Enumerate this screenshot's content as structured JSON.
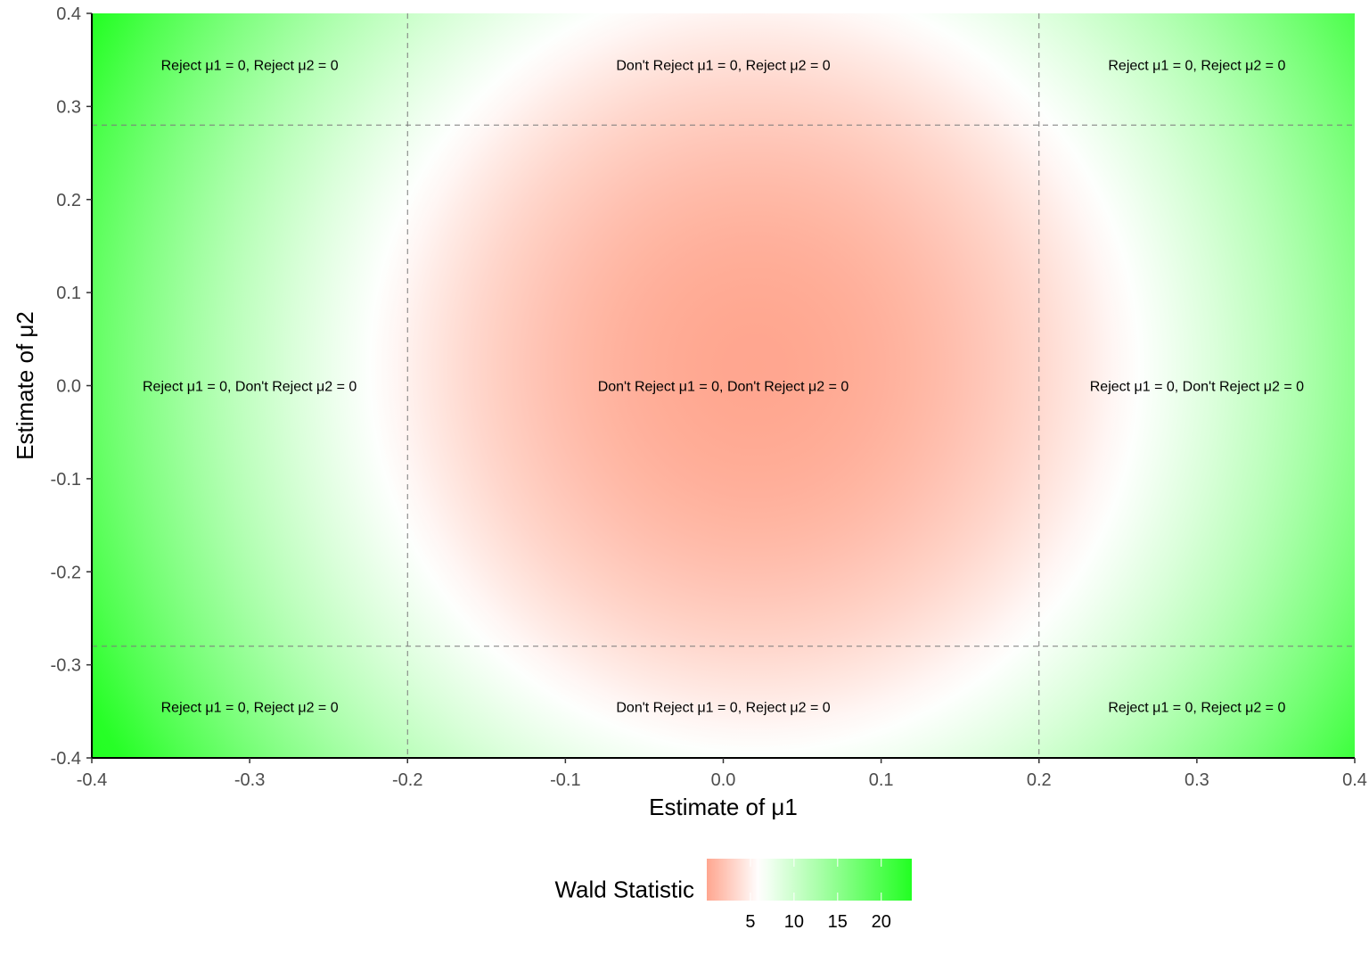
{
  "chart_data": {
    "type": "heatmap",
    "title": "",
    "xlabel": "Estimate of μ1",
    "ylabel": "Estimate of μ2",
    "xlim": [
      -0.4,
      0.4
    ],
    "ylim": [
      -0.4,
      0.4
    ],
    "x_ticks": [
      -0.4,
      -0.3,
      -0.2,
      -0.1,
      0.0,
      0.1,
      0.2,
      0.3,
      0.4
    ],
    "x_tick_labels": [
      "-0.4",
      "-0.3",
      "-0.2",
      "-0.1",
      "0.0",
      "0.1",
      "0.2",
      "0.3",
      "0.4"
    ],
    "y_ticks": [
      -0.4,
      -0.3,
      -0.2,
      -0.1,
      0.0,
      0.1,
      0.2,
      0.3,
      0.4
    ],
    "y_tick_labels": [
      "-0.4",
      "-0.3",
      "-0.2",
      "-0.1",
      "0.0",
      "0.1",
      "0.2",
      "0.3",
      "0.4"
    ],
    "center": [
      0.02,
      0.02
    ],
    "scale_divisor": 0.0096,
    "critical_lines_x": [
      -0.2,
      0.2
    ],
    "critical_lines_y": [
      -0.28,
      0.28
    ],
    "grid": false,
    "legend": {
      "title": "Wald Statistic",
      "position": "bottom",
      "min": 0,
      "max": 23.5,
      "ticks": [
        5,
        10,
        15,
        20
      ],
      "tick_labels": [
        "5",
        "10",
        "15",
        "20"
      ],
      "colors": {
        "low": "#ffa68f",
        "mid": "#ffffff",
        "high": "#22ff22"
      },
      "midpoint": 6
    },
    "region_labels": [
      {
        "text": "Reject μ1 = 0, Reject μ2 = 0",
        "x": -0.3,
        "y": 0.345
      },
      {
        "text": "Don't Reject μ1 = 0, Reject μ2 = 0",
        "x": 0.0,
        "y": 0.345
      },
      {
        "text": "Reject μ1 = 0, Reject μ2 = 0",
        "x": 0.3,
        "y": 0.345
      },
      {
        "text": "Reject μ1 = 0, Don't Reject μ2 = 0",
        "x": -0.3,
        "y": 0.0
      },
      {
        "text": "Don't Reject μ1 = 0, Don't Reject μ2 = 0",
        "x": 0.0,
        "y": 0.0
      },
      {
        "text": "Reject μ1 = 0, Don't Reject μ2 = 0",
        "x": 0.3,
        "y": 0.0
      },
      {
        "text": "Reject μ1 = 0, Reject μ2 = 0",
        "x": -0.3,
        "y": -0.345
      },
      {
        "text": "Don't Reject μ1 = 0, Reject μ2 = 0",
        "x": 0.0,
        "y": -0.345
      },
      {
        "text": "Reject μ1 = 0, Reject μ2 = 0",
        "x": 0.3,
        "y": -0.345
      }
    ]
  }
}
